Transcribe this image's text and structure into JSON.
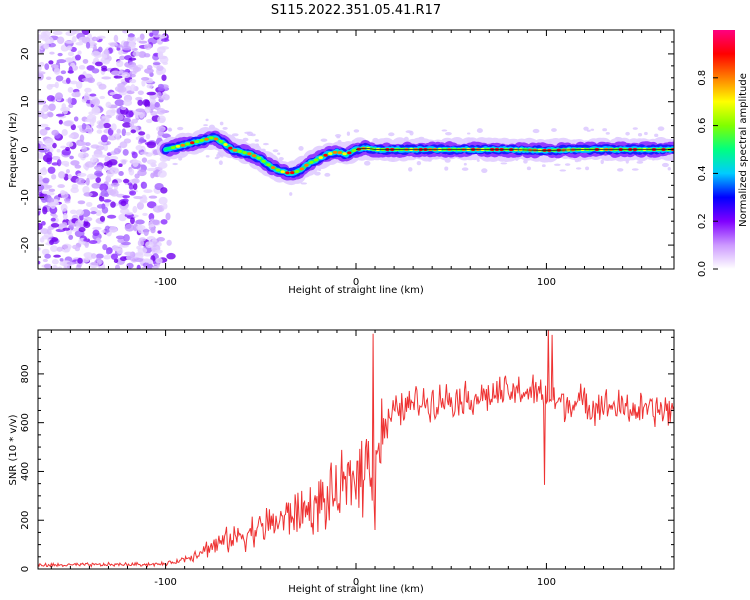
{
  "title": "S115.2022.351.05.41.R17",
  "chart_data": [
    {
      "type": "heatmap",
      "xlabel": "Height of straight line (km)",
      "ylabel": "Frequency (Hz)",
      "xlim": [
        -167,
        167
      ],
      "ylim": [
        -25,
        25
      ],
      "x_ticks": [
        -100,
        0,
        100
      ],
      "y_ticks": [
        -20,
        -10,
        0,
        10,
        20
      ],
      "colorbar": {
        "label": "Normalized spectral amplitude",
        "range": [
          0,
          1
        ],
        "ticks": [
          "0.0",
          "0.2",
          "0.4",
          "0.6",
          "0.8"
        ],
        "colors": [
          "#ffffff",
          "#cc99ff",
          "#8000ff",
          "#0000ff",
          "#00ccff",
          "#00ff80",
          "#80ff00",
          "#ffff00",
          "#ff8000",
          "#ff0000",
          "#ff0080"
        ]
      },
      "noise_region_x": [
        -167,
        -100
      ],
      "signal_track": {
        "x": [
          -100,
          -90,
          -80,
          -75,
          -70,
          -65,
          -60,
          -55,
          -50,
          -45,
          -40,
          -35,
          -30,
          -25,
          -20,
          -15,
          -10,
          -5,
          0,
          5,
          10,
          20,
          40,
          60,
          80,
          100,
          120,
          140,
          167
        ],
        "freq": [
          0,
          1,
          2,
          2.5,
          1.5,
          0,
          -0.5,
          -1,
          -2,
          -3.5,
          -4.5,
          -5,
          -4.5,
          -3,
          -2,
          -1,
          -0.5,
          -1,
          0,
          0.3,
          0,
          0,
          0,
          0,
          0,
          -0.2,
          0,
          0,
          0
        ]
      }
    },
    {
      "type": "line",
      "xlabel": "Height of straight line (km)",
      "ylabel": "SNR (10 * v/v)",
      "xlim": [
        -167,
        167
      ],
      "ylim": [
        0,
        980
      ],
      "x_ticks": [
        -100,
        0,
        100
      ],
      "y_ticks": [
        0,
        200,
        400,
        600,
        800
      ],
      "color": "#ee3333",
      "trend": {
        "x": [
          -167,
          -100,
          -90,
          -80,
          -70,
          -60,
          -50,
          -40,
          -30,
          -20,
          -10,
          -5,
          0,
          5,
          10,
          15,
          20,
          30,
          40,
          50,
          60,
          70,
          80,
          90,
          95,
          100,
          105,
          110,
          120,
          130,
          140,
          150,
          167
        ],
        "y": [
          15,
          20,
          40,
          80,
          110,
          140,
          170,
          200,
          230,
          260,
          300,
          340,
          390,
          430,
          480,
          580,
          640,
          680,
          690,
          700,
          700,
          710,
          720,
          730,
          720,
          700,
          690,
          680,
          680,
          670,
          660,
          650,
          650
        ]
      },
      "spikes": [
        {
          "x": 9,
          "y": 965
        },
        {
          "x": 10,
          "y": 160
        },
        {
          "x": 99,
          "y": 345
        },
        {
          "x": 101,
          "y": 990
        },
        {
          "x": 103,
          "y": 960
        }
      ]
    }
  ]
}
